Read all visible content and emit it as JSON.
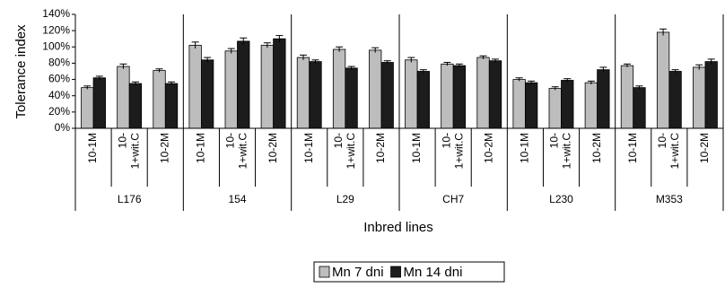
{
  "chart_data": {
    "type": "bar",
    "groups": [
      "L176",
      "154",
      "L29",
      "CH7",
      "L230",
      "M353"
    ],
    "subcategories": [
      {
        "line1": "10-1M",
        "line2": ""
      },
      {
        "line1": "10-",
        "line2": "1+wit.C"
      },
      {
        "line1": "10-2M",
        "line2": ""
      }
    ],
    "series": [
      {
        "name": "Mn 7 dni",
        "color": "#bdbdbd",
        "values": [
          50,
          76,
          71,
          102,
          95,
          102,
          87,
          97,
          96,
          84,
          79,
          87,
          60,
          49,
          56,
          77,
          118,
          75
        ],
        "errors": [
          2,
          3,
          2,
          4,
          3,
          3,
          3,
          3,
          3,
          3,
          2,
          2,
          2,
          2,
          2,
          2,
          4,
          3
        ]
      },
      {
        "name": "Mn 14 dni",
        "color": "#1c1c1c",
        "values": [
          62,
          55,
          55,
          84,
          107,
          110,
          82,
          74,
          81,
          70,
          77,
          83,
          56,
          59,
          72,
          50,
          70,
          82
        ],
        "errors": [
          2,
          2,
          2,
          3,
          4,
          4,
          2,
          2,
          2,
          2,
          2,
          2,
          2,
          2,
          3,
          2,
          2,
          3
        ]
      }
    ],
    "ylabel": "Tolerance index",
    "xlabel": "Inbred lines",
    "ylim": [
      0,
      140
    ],
    "yticks": [
      0,
      20,
      40,
      60,
      80,
      100,
      120,
      140
    ],
    "ytick_suffix": "%",
    "legend": "bottom-center",
    "grid": false
  }
}
